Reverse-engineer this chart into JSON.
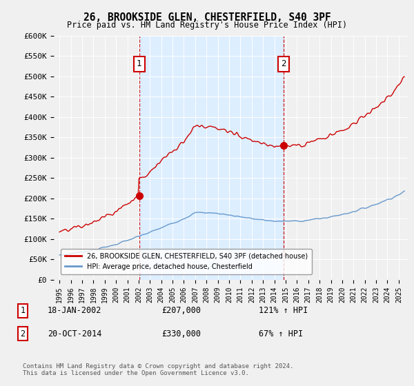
{
  "title": "26, BROOKSIDE GLEN, CHESTERFIELD, S40 3PF",
  "subtitle": "Price paid vs. HM Land Registry's House Price Index (HPI)",
  "ylim": [
    0,
    600000
  ],
  "yticks": [
    0,
    50000,
    100000,
    150000,
    200000,
    250000,
    300000,
    350000,
    400000,
    450000,
    500000,
    550000,
    600000
  ],
  "ytick_labels": [
    "£0",
    "£50K",
    "£100K",
    "£150K",
    "£200K",
    "£250K",
    "£300K",
    "£350K",
    "£400K",
    "£450K",
    "£500K",
    "£550K",
    "£600K"
  ],
  "sale1_date": 2002.05,
  "sale1_price": 207000,
  "sale1_label": "1",
  "sale1_text": "18-JAN-2002",
  "sale1_amount": "£207,000",
  "sale1_hpi": "121% ↑ HPI",
  "sale2_date": 2014.8,
  "sale2_price": 330000,
  "sale2_label": "2",
  "sale2_text": "20-OCT-2014",
  "sale2_amount": "£330,000",
  "sale2_hpi": "67% ↑ HPI",
  "hpi_color": "#6699cc",
  "price_color": "#cc0000",
  "vline_color": "#cc0000",
  "shade_color": "#ddeeff",
  "background_color": "#f0f0f0",
  "legend_label_price": "26, BROOKSIDE GLEN, CHESTERFIELD, S40 3PF (detached house)",
  "legend_label_hpi": "HPI: Average price, detached house, Chesterfield",
  "footer": "Contains HM Land Registry data © Crown copyright and database right 2024.\nThis data is licensed under the Open Government Licence v3.0.",
  "xlim_left": 1994.5,
  "xlim_right": 2025.8
}
